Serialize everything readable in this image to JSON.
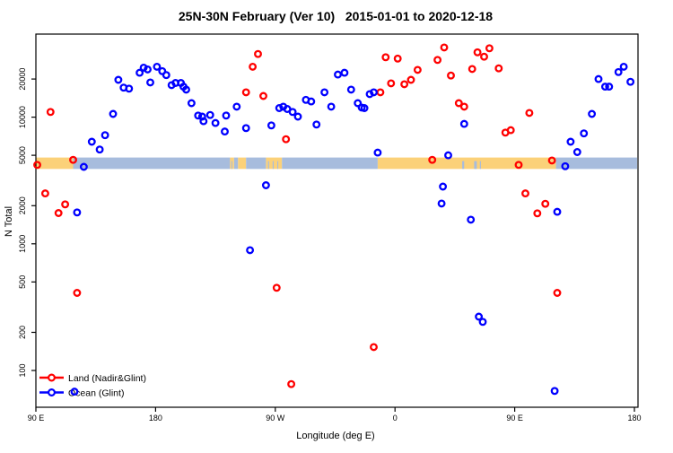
{
  "chart_data": {
    "type": "scatter",
    "title": "25N-30N February (Ver 10)   2015-01-01 to 2020-12-18",
    "xlabel": "Longitude (deg E)",
    "ylabel": "N Total",
    "x_domain": [
      90,
      540
    ],
    "x_ticks": [
      {
        "value": 90,
        "label": "90 E"
      },
      {
        "value": 180,
        "label": "180"
      },
      {
        "value": 270,
        "label": "90 W"
      },
      {
        "value": 360,
        "label": "0"
      },
      {
        "value": 450,
        "label": "90 E"
      },
      {
        "value": 540,
        "label": "180"
      }
    ],
    "y_scale": "log",
    "y_domain": [
      51,
      45000
    ],
    "y_ticks": [
      {
        "value": 100,
        "label": "100"
      },
      {
        "value": 200,
        "label": "200"
      },
      {
        "value": 500,
        "label": "500"
      },
      {
        "value": 1000,
        "label": "1000"
      },
      {
        "value": 2000,
        "label": "2000"
      },
      {
        "value": 5000,
        "label": "5000"
      },
      {
        "value": 10000,
        "label": "10000"
      },
      {
        "value": 20000,
        "label": "20000"
      }
    ],
    "grid": false,
    "legend_position": "bottom-left",
    "colors": {
      "land_series": "#FF0000",
      "ocean_series": "#0000FF",
      "map_land": "#FBD179",
      "map_ocean": "#A7BCDD",
      "axis": "#000000"
    },
    "map_band": {
      "n_top": 4800,
      "n_bottom": 3900,
      "segments": [
        {
          "from": 90,
          "to": 118,
          "type": "land"
        },
        {
          "from": 118,
          "to": 236,
          "type": "ocean"
        },
        {
          "from": 236,
          "to": 239,
          "type": "land"
        },
        {
          "from": 239,
          "to": 242,
          "type": "ocean"
        },
        {
          "from": 242,
          "to": 248,
          "type": "land"
        },
        {
          "from": 248,
          "to": 263,
          "type": "ocean"
        },
        {
          "from": 263,
          "to": 275,
          "type": "land"
        },
        {
          "from": 275,
          "to": 347,
          "type": "ocean"
        },
        {
          "from": 347,
          "to": 481,
          "type": "land"
        },
        {
          "from": 481,
          "to": 542,
          "type": "ocean"
        }
      ],
      "ocean_speckles": [
        [
          237.0,
          237.6
        ],
        [
          264.5,
          265.3
        ],
        [
          268.0,
          268.8
        ],
        [
          271.5,
          272.2
        ],
        [
          410.5,
          412.0
        ],
        [
          419.5,
          421.5
        ],
        [
          423.8,
          424.6
        ]
      ]
    },
    "series": [
      {
        "name": "Land (Nadir&Glint)",
        "color": "#FF0000",
        "points": [
          [
            91,
            4200
          ],
          [
            97,
            2500
          ],
          [
            101,
            11000
          ],
          [
            107,
            1750
          ],
          [
            112,
            2050
          ],
          [
            118,
            4600
          ],
          [
            121,
            410
          ],
          [
            248,
            15700
          ],
          [
            253,
            25000
          ],
          [
            257,
            31500
          ],
          [
            261,
            14700
          ],
          [
            271,
            450
          ],
          [
            278,
            6700
          ],
          [
            282,
            78
          ],
          [
            344,
            153
          ],
          [
            349,
            15700
          ],
          [
            353,
            29700
          ],
          [
            357,
            18500
          ],
          [
            362,
            29000
          ],
          [
            367,
            18200
          ],
          [
            372,
            19700
          ],
          [
            377,
            23600
          ],
          [
            388,
            4600
          ],
          [
            392,
            28300
          ],
          [
            397,
            35500
          ],
          [
            402,
            21300
          ],
          [
            408,
            12900
          ],
          [
            412,
            12100
          ],
          [
            418,
            24000
          ],
          [
            422,
            32500
          ],
          [
            427,
            30000
          ],
          [
            431,
            35000
          ],
          [
            438,
            24300
          ],
          [
            443,
            7550
          ],
          [
            447,
            7900
          ],
          [
            453,
            4200
          ],
          [
            458,
            2500
          ],
          [
            461,
            10800
          ],
          [
            467,
            1740
          ],
          [
            473,
            2070
          ],
          [
            478,
            4550
          ],
          [
            482,
            410
          ]
        ]
      },
      {
        "name": "Ocean (Glint)",
        "color": "#0000FF",
        "points": [
          [
            119,
            68
          ],
          [
            121,
            1770
          ],
          [
            126,
            4050
          ],
          [
            132,
            6400
          ],
          [
            138,
            5550
          ],
          [
            142,
            7200
          ],
          [
            148,
            10600
          ],
          [
            152,
            19700
          ],
          [
            156,
            17100
          ],
          [
            160,
            16800
          ],
          [
            168,
            22400
          ],
          [
            171,
            24600
          ],
          [
            174,
            23800
          ],
          [
            176,
            18800
          ],
          [
            181,
            25000
          ],
          [
            185,
            23100
          ],
          [
            188,
            21500
          ],
          [
            192,
            17900
          ],
          [
            195,
            18600
          ],
          [
            199,
            18600
          ],
          [
            201,
            17400
          ],
          [
            203,
            16500
          ],
          [
            207,
            12900
          ],
          [
            212,
            10300
          ],
          [
            215,
            10100
          ],
          [
            216,
            9300
          ],
          [
            221,
            10400
          ],
          [
            225,
            9000
          ],
          [
            232,
            7700
          ],
          [
            233,
            10300
          ],
          [
            241,
            12100
          ],
          [
            248,
            8200
          ],
          [
            251,
            890
          ],
          [
            263,
            2900
          ],
          [
            267,
            8600
          ],
          [
            273,
            11800
          ],
          [
            276,
            12100
          ],
          [
            279,
            11600
          ],
          [
            283,
            11000
          ],
          [
            287,
            10100
          ],
          [
            293,
            13700
          ],
          [
            297,
            13300
          ],
          [
            301,
            8750
          ],
          [
            307,
            15700
          ],
          [
            312,
            12100
          ],
          [
            317,
            21700
          ],
          [
            322,
            22400
          ],
          [
            327,
            16500
          ],
          [
            332,
            12900
          ],
          [
            335,
            11900
          ],
          [
            337,
            11800
          ],
          [
            341,
            15200
          ],
          [
            344,
            15700
          ],
          [
            347,
            5250
          ],
          [
            395,
            2080
          ],
          [
            396,
            2830
          ],
          [
            400,
            5000
          ],
          [
            412,
            8850
          ],
          [
            417,
            1550
          ],
          [
            423,
            266
          ],
          [
            426,
            242
          ],
          [
            480,
            69
          ],
          [
            482,
            1790
          ],
          [
            488,
            4100
          ],
          [
            492,
            6400
          ],
          [
            497,
            5300
          ],
          [
            502,
            7450
          ],
          [
            508,
            10600
          ],
          [
            513,
            20000
          ],
          [
            518,
            17400
          ],
          [
            521,
            17400
          ],
          [
            528,
            22700
          ],
          [
            532,
            25000
          ],
          [
            537,
            19000
          ]
        ]
      }
    ]
  }
}
